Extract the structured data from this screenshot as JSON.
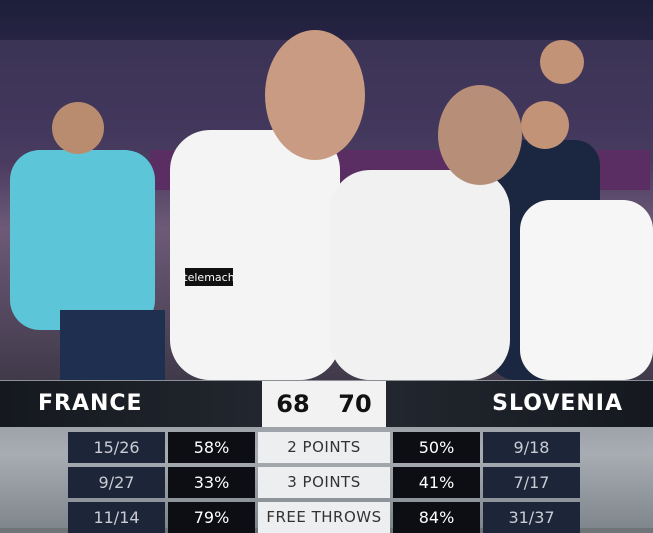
{
  "scoreboard": {
    "home": "FRANCE",
    "home_score": 68,
    "away_score": 70,
    "away": "SLOVENIA"
  },
  "stats": {
    "rows": [
      [
        "15/26",
        "58%",
        "2 POINTS",
        "50%",
        "9/18"
      ],
      [
        "9/27",
        "33%",
        "3 POINTS",
        "41%",
        "7/17"
      ],
      [
        "11/14",
        "79%",
        "FREE THROWS",
        "84%",
        "31/37"
      ]
    ]
  },
  "shirt_logo": "telemach"
}
